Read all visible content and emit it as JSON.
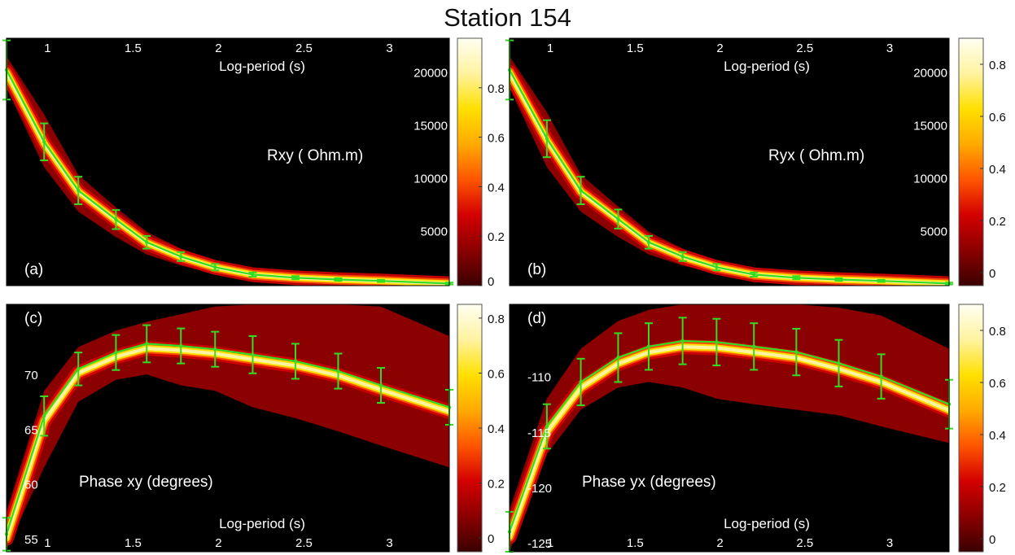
{
  "title": "Station 154",
  "colors": {
    "background": "#000000",
    "envelope": "#8b0000",
    "heat_core": "#fff6a8",
    "fit_line": "#33dd22"
  },
  "colorscale": {
    "name": "hot",
    "stops": [
      "#3a0000",
      "#8b0000",
      "#d40000",
      "#ff5500",
      "#ffaa00",
      "#ffe000",
      "#fff3a0",
      "#fffff2"
    ]
  },
  "chart_data": [
    {
      "panel_label": "(a)",
      "type": "line",
      "annotation": "Rxy ( Ohm.m)",
      "xlabel": "Log-period (s)",
      "xlabel_position": "top",
      "x_ticks": [
        "1",
        "1.5",
        "2",
        "2.5",
        "3"
      ],
      "x_tick_values": [
        1,
        1.5,
        2,
        2.5,
        3
      ],
      "xlim": [
        0.76,
        3.35
      ],
      "ylim": [
        -200,
        23200
      ],
      "y_ticks": [
        "20000",
        "15000",
        "10000",
        "5000"
      ],
      "y_tick_values": [
        20000,
        15000,
        10000,
        5000
      ],
      "y_tick_side": "right",
      "x": [
        0.76,
        0.98,
        1.18,
        1.4,
        1.58,
        1.78,
        1.98,
        2.2,
        2.45,
        2.7,
        2.95,
        3.35
      ],
      "y": [
        20200,
        13400,
        8800,
        6050,
        3900,
        2550,
        1550,
        850,
        550,
        380,
        250,
        0
      ],
      "error": [
        2800,
        1750,
        1300,
        900,
        600,
        420,
        300,
        200,
        150,
        120,
        100,
        90
      ],
      "envelope_upper": [
        21500,
        16000,
        10300,
        7200,
        4900,
        3300,
        2200,
        1300,
        800,
        550,
        400,
        150
      ],
      "envelope_lower": [
        18500,
        11000,
        6800,
        4400,
        2750,
        1700,
        950,
        450,
        250,
        150,
        80,
        0
      ],
      "colorbar": {
        "ticks": [
          "0",
          "0.2",
          "0.4",
          "0.6",
          "0.8"
        ],
        "values": [
          0,
          0.2,
          0.4,
          0.6,
          0.8
        ],
        "range": [
          0,
          1.0
        ]
      }
    },
    {
      "panel_label": "(b)",
      "type": "line",
      "annotation": "Ryx ( Ohm.m)",
      "xlabel": "Log-period (s)",
      "xlabel_position": "top",
      "x_ticks": [
        "1",
        "1.5",
        "2",
        "2.5",
        "3"
      ],
      "x_tick_values": [
        1,
        1.5,
        2,
        2.5,
        3
      ],
      "xlim": [
        0.76,
        3.35
      ],
      "ylim": [
        -200,
        23200
      ],
      "y_ticks": [
        "20000",
        "15000",
        "10000",
        "5000"
      ],
      "y_tick_values": [
        20000,
        15000,
        10000,
        5000
      ],
      "y_tick_side": "right",
      "x": [
        0.76,
        0.98,
        1.18,
        1.4,
        1.58,
        1.78,
        1.98,
        2.2,
        2.45,
        2.7,
        2.95,
        3.35
      ],
      "y": [
        20200,
        13700,
        8800,
        6100,
        3900,
        2550,
        1550,
        850,
        550,
        380,
        250,
        0
      ],
      "error": [
        2800,
        1750,
        1300,
        900,
        600,
        420,
        300,
        200,
        150,
        120,
        100,
        90
      ],
      "envelope_upper": [
        21500,
        16200,
        10300,
        7300,
        4900,
        3300,
        2200,
        1300,
        800,
        550,
        400,
        150
      ],
      "envelope_lower": [
        18500,
        11000,
        6800,
        4400,
        2750,
        1700,
        950,
        450,
        250,
        150,
        80,
        0
      ],
      "colorbar": {
        "ticks": [
          "0",
          "0.2",
          "0.4",
          "0.6",
          "0.8"
        ],
        "values": [
          0,
          0.2,
          0.4,
          0.6,
          0.8
        ],
        "range": [
          -0.05,
          0.9
        ]
      }
    },
    {
      "panel_label": "(c)",
      "type": "line",
      "annotation": "Phase xy (degrees)",
      "xlabel": "Log-period (s)",
      "xlabel_position": "bottom",
      "x_ticks": [
        "1",
        "1.5",
        "2",
        "2.5",
        "3"
      ],
      "x_tick_values": [
        1,
        1.5,
        2,
        2.5,
        3
      ],
      "xlim": [
        0.76,
        3.35
      ],
      "ylim": [
        53.8,
        76.4
      ],
      "y_ticks": [
        "70",
        "65",
        "60",
        "55"
      ],
      "y_tick_values": [
        70,
        65,
        60,
        55
      ],
      "y_tick_side": "left",
      "x": [
        0.76,
        0.98,
        1.18,
        1.4,
        1.58,
        1.78,
        1.98,
        2.2,
        2.45,
        2.7,
        2.95,
        3.35
      ],
      "y": [
        55.4,
        66.2,
        70.5,
        72.0,
        72.8,
        72.6,
        72.3,
        71.8,
        71.2,
        70.3,
        69.0,
        67.0
      ],
      "error": [
        1.5,
        1.8,
        1.5,
        1.6,
        1.7,
        1.6,
        1.6,
        1.7,
        1.6,
        1.6,
        1.6,
        1.6
      ],
      "envelope_upper": [
        57.5,
        68.5,
        72.5,
        74.0,
        74.8,
        75.5,
        76.2,
        76.4,
        76.4,
        76.4,
        76.2,
        73.5
      ],
      "envelope_lower": [
        54.0,
        61.5,
        67.5,
        69.5,
        70.0,
        69.0,
        68.5,
        67.0,
        66.0,
        64.8,
        63.5,
        61.5
      ],
      "colorbar": {
        "ticks": [
          "0",
          "0.2",
          "0.4",
          "0.6",
          "0.8"
        ],
        "values": [
          0,
          0.2,
          0.4,
          0.6,
          0.8
        ],
        "range": [
          -0.05,
          0.85
        ]
      }
    },
    {
      "panel_label": "(d)",
      "type": "line",
      "annotation": "Phase yx (degrees)",
      "xlabel": "Log-period (s)",
      "xlabel_position": "bottom",
      "x_ticks": [
        "1",
        "1.5",
        "2",
        "2.5",
        "3"
      ],
      "x_tick_values": [
        1,
        1.5,
        2,
        2.5,
        3
      ],
      "xlim": [
        0.76,
        3.35
      ],
      "ylim": [
        -125.8,
        -103.5
      ],
      "y_ticks": [
        "-110",
        "-115",
        "-120",
        "-125"
      ],
      "y_tick_values": [
        -110,
        -115,
        -120,
        -125
      ],
      "y_tick_side": "left",
      "x": [
        0.76,
        0.98,
        1.18,
        1.4,
        1.58,
        1.78,
        1.98,
        2.2,
        2.45,
        2.7,
        2.95,
        3.35
      ],
      "y": [
        -124.0,
        -114.5,
        -110.5,
        -108.3,
        -107.3,
        -106.8,
        -106.9,
        -107.3,
        -107.8,
        -108.8,
        -110.0,
        -112.5
      ],
      "error": [
        1.8,
        2.0,
        2.1,
        2.2,
        2.1,
        2.1,
        2.1,
        2.1,
        2.1,
        2.1,
        2.0,
        2.2
      ],
      "envelope_upper": [
        -122.0,
        -112.0,
        -107.5,
        -105.0,
        -104.0,
        -103.5,
        -103.5,
        -103.5,
        -103.5,
        -103.8,
        -104.5,
        -107.5
      ],
      "envelope_lower": [
        -125.8,
        -117.0,
        -113.0,
        -111.0,
        -110.5,
        -111.0,
        -112.0,
        -112.5,
        -113.0,
        -113.5,
        -114.5,
        -116.0
      ],
      "colorbar": {
        "ticks": [
          "0",
          "0.2",
          "0.4",
          "0.6",
          "0.8"
        ],
        "values": [
          0,
          0.2,
          0.4,
          0.6,
          0.8
        ],
        "range": [
          -0.05,
          0.9
        ]
      }
    }
  ]
}
